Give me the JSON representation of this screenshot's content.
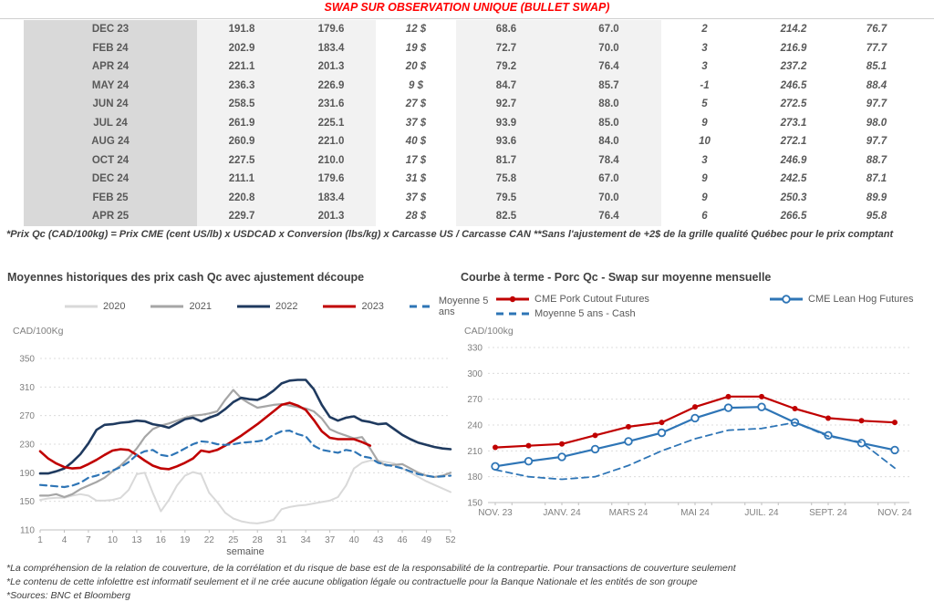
{
  "doc": {
    "title": "SWAP SUR OBSERVATION UNIQUE (BULLET SWAP)",
    "footnote": "*Prix Qc (CAD/100kg) = Prix CME (cent US/lb) x USDCAD x Conversion (lbs/kg) x Carcasse US / Carcasse CAN **Sans l'ajustement de +2$ de la grille qualité Québec pour le prix comptant",
    "disclaimers": [
      "*La compréhension de la relation de couverture, de la corrélation et du risque de base est de la responsabilité de la contrepartie. Pour transactions de couverture seulement",
      "*Le contenu de cette infolettre est informatif seulement et il ne crée aucune obligation légale ou contractuelle pour la Banque Nationale et les entités de son groupe",
      "*Sources: BNC et Bloomberg"
    ]
  },
  "colors": {
    "green": "#00b050",
    "blue_italic": "#4472c4",
    "negative_red": "#ff0000",
    "title_red": "#ff0000",
    "navy_2022": "#1f3a5f",
    "red_2023": "#c00000",
    "steel_blue": "#2e75b6",
    "gray_2021": "#a6a6a6",
    "gray_2020": "#d9d9d9"
  },
  "table": {
    "rows": [
      [
        "DEC 23",
        "191.8",
        "179.6",
        "12 $",
        "68.6",
        "67.0",
        "2",
        "214.2",
        "76.7"
      ],
      [
        "FEB 24",
        "202.9",
        "183.4",
        "19 $",
        "72.7",
        "70.0",
        "3",
        "216.9",
        "77.7"
      ],
      [
        "APR 24",
        "221.1",
        "201.3",
        "20 $",
        "79.2",
        "76.4",
        "3",
        "237.2",
        "85.1"
      ],
      [
        "MAY 24",
        "236.3",
        "226.9",
        "9 $",
        "84.7",
        "85.7",
        "-1",
        "246.5",
        "88.4"
      ],
      [
        "JUN 24",
        "258.5",
        "231.6",
        "27 $",
        "92.7",
        "88.0",
        "5",
        "272.5",
        "97.7"
      ],
      [
        "JUL 24",
        "261.9",
        "225.1",
        "37 $",
        "93.9",
        "85.0",
        "9",
        "273.1",
        "98.0"
      ],
      [
        "AUG 24",
        "260.9",
        "221.0",
        "40 $",
        "93.6",
        "84.0",
        "10",
        "272.1",
        "97.7"
      ],
      [
        "OCT 24",
        "227.5",
        "210.0",
        "17 $",
        "81.7",
        "78.4",
        "3",
        "246.9",
        "88.7"
      ],
      [
        "DEC 24",
        "211.1",
        "179.6",
        "31 $",
        "75.8",
        "67.0",
        "9",
        "242.5",
        "87.1"
      ],
      [
        "FEB 25",
        "220.8",
        "183.4",
        "37 $",
        "79.5",
        "70.0",
        "9",
        "250.3",
        "89.9"
      ],
      [
        "APR 25",
        "229.7",
        "201.3",
        "28 $",
        "82.5",
        "76.4",
        "6",
        "266.5",
        "95.8"
      ]
    ]
  },
  "chart_data": [
    {
      "type": "line",
      "title": "Moyennes historiques des prix cash Qc avec ajustement découpe",
      "unit_label": "CAD/100Kg",
      "xlabel": "semaine",
      "n": 52,
      "ylim": [
        110,
        350
      ],
      "yticks": [
        110,
        150,
        190,
        230,
        270,
        310,
        350
      ],
      "xtick_idx": [
        0,
        3,
        6,
        9,
        12,
        15,
        18,
        21,
        24,
        27,
        30,
        33,
        36,
        39,
        42,
        45,
        48,
        51
      ],
      "xtick_labels": [
        "1",
        "4",
        "7",
        "10",
        "13",
        "16",
        "19",
        "22",
        "25",
        "28",
        "31",
        "34",
        "37",
        "40",
        "43",
        "46",
        "49",
        "52"
      ],
      "legend_position": "top",
      "grid": true,
      "series": [
        {
          "name": "2020",
          "color": "#d9d9d9",
          "width": 2,
          "values": [
            152,
            154,
            155,
            155,
            158,
            160,
            158,
            151,
            151,
            152,
            155,
            166,
            188,
            190,
            162,
            136,
            152,
            172,
            186,
            191,
            188,
            162,
            149,
            134,
            126,
            122,
            120,
            119,
            121,
            124,
            139,
            142,
            144,
            145,
            147,
            149,
            151,
            156,
            172,
            196,
            204,
            207,
            207,
            205,
            203,
            196,
            190,
            184,
            178,
            173,
            168,
            163
          ]
        },
        {
          "name": "2021",
          "color": "#a6a6a6",
          "width": 2.2,
          "values": [
            158,
            158,
            160,
            156,
            160,
            167,
            172,
            177,
            183,
            192,
            200,
            211,
            224,
            240,
            251,
            256,
            259,
            263,
            267,
            270,
            271,
            273,
            276,
            292,
            306,
            294,
            287,
            281,
            283,
            285,
            286,
            284,
            282,
            280,
            276,
            266,
            251,
            246,
            242,
            238,
            240,
            224,
            206,
            200,
            201,
            202,
            196,
            190,
            186,
            184,
            186,
            190
          ]
        },
        {
          "name": "2022",
          "color": "#1f3a5f",
          "width": 2.6,
          "values": [
            189,
            189,
            192,
            196,
            205,
            216,
            231,
            250,
            257,
            258,
            260,
            261,
            263,
            262,
            258,
            256,
            253,
            259,
            265,
            267,
            262,
            267,
            271,
            279,
            289,
            295,
            293,
            292,
            297,
            305,
            315,
            319,
            320,
            320,
            307,
            285,
            268,
            263,
            267,
            269,
            263,
            261,
            258,
            259,
            251,
            243,
            237,
            232,
            229,
            226,
            224,
            223
          ]
        },
        {
          "name": "2023",
          "color": "#c00000",
          "width": 2.6,
          "values": [
            220,
            210,
            203,
            198,
            196,
            197,
            202,
            208,
            215,
            221,
            223,
            222,
            215,
            207,
            200,
            196,
            195,
            199,
            204,
            210,
            221,
            219,
            222,
            228,
            235,
            242,
            250,
            258,
            267,
            276,
            285,
            288,
            284,
            278,
            264,
            248,
            239,
            237,
            237,
            237,
            233,
            228
          ]
        },
        {
          "name": "Moyenne 5 ans",
          "color": "#2e75b6",
          "width": 2.2,
          "dash": true,
          "values": [
            173,
            172,
            171,
            170,
            172,
            176,
            183,
            186,
            190,
            193,
            198,
            205,
            215,
            220,
            222,
            215,
            213,
            218,
            224,
            230,
            234,
            233,
            230,
            229,
            230,
            232,
            233,
            234,
            236,
            243,
            248,
            249,
            244,
            241,
            228,
            222,
            220,
            218,
            222,
            220,
            213,
            211,
            204,
            201,
            199,
            196,
            192,
            188,
            186,
            184,
            185,
            186
          ]
        }
      ]
    },
    {
      "type": "line",
      "title": "Courbe à terme - Porc Qc - Swap sur moyenne mensuelle",
      "unit_label": "CAD/100kg",
      "xlabel": "",
      "n": 13,
      "ylim": [
        150,
        330
      ],
      "yticks": [
        150,
        180,
        210,
        240,
        270,
        300,
        330
      ],
      "xtick_idx": [
        0,
        2,
        4,
        6,
        8,
        10,
        12
      ],
      "xtick_labels": [
        "NOV. 23",
        "JANV. 24",
        "MARS 24",
        "MAI 24",
        "JUIL. 24",
        "SEPT. 24",
        "NOV. 24"
      ],
      "legend_position": "top",
      "grid": true,
      "series": [
        {
          "name": "CME Pork Cutout Futures",
          "color": "#c00000",
          "width": 2.2,
          "marker": "filled",
          "values": [
            214,
            216,
            218,
            228,
            238,
            243,
            261,
            273,
            273,
            259,
            248,
            245,
            243
          ]
        },
        {
          "name": "CME Lean Hog Futures",
          "color": "#2e75b6",
          "width": 2.2,
          "marker": "open",
          "values": [
            192,
            198,
            203,
            212,
            221,
            231,
            248,
            260,
            261,
            243,
            228,
            219,
            211
          ]
        },
        {
          "name": "Moyenne 5 ans - Cash",
          "color": "#2e75b6",
          "width": 1.8,
          "dash": true,
          "values": [
            188,
            180,
            177,
            180,
            193,
            210,
            224,
            234,
            236,
            243,
            227,
            220,
            190
          ]
        }
      ]
    }
  ]
}
